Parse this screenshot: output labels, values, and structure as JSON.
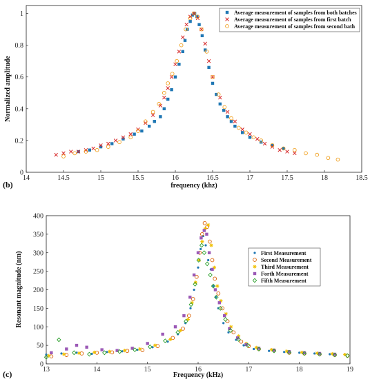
{
  "chart_data": [
    {
      "type": "scatter",
      "panel_label": "(b)",
      "title": "",
      "xlabel": "frequency (khz)",
      "ylabel": "Normalized amplitude",
      "xlim": [
        14,
        18.5
      ],
      "ylim": [
        0,
        1.05
      ],
      "xticks": [
        14,
        14.5,
        15,
        15.5,
        16,
        16.5,
        17,
        17.5,
        18,
        18.5
      ],
      "yticks": [
        0,
        0.2,
        0.4,
        0.6,
        0.8,
        1
      ],
      "xtick_labels": [
        "14",
        "14.5",
        "15",
        "15.5",
        "16",
        "16.5",
        "17",
        "17.5",
        "18",
        "18.5"
      ],
      "ytick_labels": [
        "0",
        "0.2",
        "0.4",
        "0.6",
        "0.8",
        "1"
      ],
      "grid": false,
      "legend_position": "top-right",
      "series": [
        {
          "name": "Average measurement of samples from both batches",
          "marker": "square",
          "color": "#1f77b4",
          "x": [
            14.7,
            14.85,
            15.0,
            15.15,
            15.3,
            15.45,
            15.55,
            15.65,
            15.72,
            15.8,
            15.85,
            15.9,
            15.95,
            16.0,
            16.05,
            16.1,
            16.13,
            16.16,
            16.2,
            16.23,
            16.26,
            16.29,
            16.32,
            16.36,
            16.4,
            16.45,
            16.5,
            16.55,
            16.6,
            16.65,
            16.7,
            16.75,
            16.8,
            16.9,
            17.0,
            17.15,
            17.3,
            17.45
          ],
          "y": [
            0.13,
            0.14,
            0.16,
            0.18,
            0.21,
            0.24,
            0.26,
            0.29,
            0.32,
            0.35,
            0.4,
            0.46,
            0.52,
            0.6,
            0.68,
            0.76,
            0.83,
            0.9,
            0.95,
            0.99,
            1.0,
            0.98,
            0.93,
            0.86,
            0.77,
            0.66,
            0.56,
            0.49,
            0.43,
            0.39,
            0.35,
            0.32,
            0.29,
            0.25,
            0.22,
            0.19,
            0.17,
            0.15
          ]
        },
        {
          "name": "Average measurement of samples from first batch",
          "marker": "x",
          "color": "#d62728",
          "x": [
            14.4,
            14.5,
            14.6,
            14.7,
            14.8,
            14.9,
            15.0,
            15.1,
            15.2,
            15.3,
            15.4,
            15.5,
            15.6,
            15.7,
            15.8,
            15.85,
            15.9,
            15.95,
            16.0,
            16.05,
            16.1,
            16.15,
            16.2,
            16.25,
            16.3,
            16.35,
            16.4,
            16.45,
            16.5,
            16.6,
            16.7,
            16.8,
            16.9,
            17.0,
            17.1,
            17.2,
            17.3,
            17.4,
            17.5,
            17.6
          ],
          "y": [
            0.11,
            0.12,
            0.13,
            0.13,
            0.14,
            0.15,
            0.17,
            0.18,
            0.2,
            0.22,
            0.24,
            0.27,
            0.31,
            0.36,
            0.42,
            0.47,
            0.53,
            0.6,
            0.68,
            0.76,
            0.85,
            0.93,
            0.98,
            1.0,
            0.97,
            0.9,
            0.81,
            0.7,
            0.6,
            0.47,
            0.38,
            0.32,
            0.27,
            0.24,
            0.21,
            0.18,
            0.16,
            0.14,
            0.13,
            0.12
          ]
        },
        {
          "name": "Average measurement of samples from second bath",
          "marker": "circle",
          "color": "#f0a020",
          "x": [
            14.5,
            14.65,
            14.8,
            14.95,
            15.1,
            15.25,
            15.4,
            15.5,
            15.6,
            15.7,
            15.78,
            15.85,
            15.9,
            15.96,
            16.02,
            16.08,
            16.14,
            16.2,
            16.25,
            16.3,
            16.35,
            16.42,
            16.5,
            16.58,
            16.66,
            16.75,
            16.85,
            16.95,
            17.05,
            17.15,
            17.3,
            17.45,
            17.6,
            17.75,
            17.9,
            18.05,
            18.18
          ],
          "y": [
            0.1,
            0.12,
            0.13,
            0.14,
            0.16,
            0.19,
            0.22,
            0.26,
            0.32,
            0.38,
            0.43,
            0.5,
            0.56,
            0.62,
            0.7,
            0.8,
            0.9,
            0.97,
            1.0,
            0.98,
            0.9,
            0.76,
            0.6,
            0.49,
            0.41,
            0.34,
            0.28,
            0.25,
            0.22,
            0.2,
            0.17,
            0.15,
            0.14,
            0.12,
            0.11,
            0.09,
            0.08
          ]
        }
      ]
    },
    {
      "type": "scatter",
      "panel_label": "(c)",
      "title": "",
      "xlabel": "Frequency (kHz)",
      "ylabel": "Resonant magnitude (nm)",
      "xlim": [
        13,
        19
      ],
      "ylim": [
        0,
        400
      ],
      "xticks": [
        13,
        14,
        15,
        16,
        17,
        18,
        19
      ],
      "yticks": [
        0,
        50,
        100,
        150,
        200,
        250,
        300,
        350,
        400
      ],
      "xtick_labels": [
        "13",
        "14",
        "15",
        "16",
        "17",
        "18",
        "19"
      ],
      "ytick_labels": [
        "0",
        "50",
        "100",
        "150",
        "200",
        "250",
        "300",
        "350",
        "400"
      ],
      "grid": false,
      "legend_position": "right",
      "series": [
        {
          "name": "First Measurement",
          "marker": "dot",
          "color": "#1f77b4",
          "x": [
            13.0,
            13.3,
            13.6,
            13.9,
            14.2,
            14.5,
            14.8,
            15.1,
            15.4,
            15.6,
            15.75,
            15.85,
            15.92,
            16.0,
            16.05,
            16.1,
            16.15,
            16.2,
            16.25,
            16.3,
            16.35,
            16.4,
            16.5,
            16.6,
            16.75,
            16.9,
            17.1,
            17.4,
            17.7,
            18.0,
            18.3,
            18.6,
            18.9
          ],
          "y": [
            25,
            28,
            30,
            27,
            32,
            34,
            38,
            45,
            60,
            80,
            110,
            150,
            200,
            260,
            310,
            345,
            320,
            280,
            255,
            210,
            180,
            150,
            110,
            85,
            65,
            50,
            40,
            35,
            32,
            30,
            28,
            26,
            25
          ]
        },
        {
          "name": "Second Measurement",
          "marker": "circle",
          "color": "#d95f02",
          "x": [
            13.1,
            13.4,
            13.7,
            14.0,
            14.3,
            14.6,
            14.9,
            15.2,
            15.5,
            15.7,
            15.82,
            15.9,
            15.97,
            16.03,
            16.08,
            16.13,
            16.18,
            16.23,
            16.28,
            16.33,
            16.4,
            16.48,
            16.58,
            16.7,
            16.85,
            17.0,
            17.2,
            17.5,
            17.8,
            18.1,
            18.4,
            18.7,
            18.95
          ],
          "y": [
            20,
            24,
            28,
            30,
            31,
            35,
            37,
            48,
            70,
            95,
            130,
            175,
            235,
            300,
            350,
            380,
            370,
            330,
            280,
            230,
            190,
            150,
            115,
            85,
            60,
            48,
            40,
            36,
            30,
            28,
            26,
            24,
            22
          ]
        },
        {
          "name": "Third Measurement",
          "marker": "star",
          "color": "#f0c000",
          "x": [
            13.05,
            13.35,
            13.65,
            13.95,
            14.25,
            14.55,
            14.85,
            15.15,
            15.45,
            15.65,
            15.8,
            15.88,
            15.95,
            16.02,
            16.08,
            16.14,
            16.2,
            16.26,
            16.32,
            16.38,
            16.45,
            16.55,
            16.65,
            16.8,
            16.95,
            17.15,
            17.45,
            17.75,
            18.05,
            18.35,
            18.65,
            18.9
          ],
          "y": [
            22,
            26,
            29,
            31,
            33,
            36,
            40,
            50,
            66,
            90,
            120,
            165,
            220,
            280,
            330,
            365,
            375,
            320,
            260,
            210,
            170,
            135,
            100,
            75,
            55,
            44,
            38,
            34,
            31,
            29,
            27,
            25
          ]
        },
        {
          "name": "Forth Measurement",
          "marker": "square",
          "color": "#9b59b6",
          "x": [
            13.1,
            13.4,
            13.6,
            13.8,
            14.1,
            14.4,
            14.7,
            15.0,
            15.3,
            15.55,
            15.72,
            15.84,
            15.92,
            16.0,
            16.06,
            16.12,
            16.17,
            16.22,
            16.28,
            16.34,
            16.42,
            16.52,
            16.62,
            16.78,
            16.95,
            17.2,
            17.5,
            17.8,
            18.1,
            18.4,
            18.7
          ],
          "y": [
            30,
            40,
            50,
            45,
            38,
            36,
            42,
            55,
            80,
            100,
            130,
            180,
            240,
            300,
            340,
            360,
            350,
            300,
            255,
            200,
            165,
            130,
            95,
            70,
            52,
            42,
            37,
            33,
            30,
            28,
            26
          ]
        },
        {
          "name": "Fifth Measurement",
          "marker": "diamond",
          "color": "#2ca02c",
          "x": [
            13.0,
            13.25,
            13.55,
            13.85,
            14.15,
            14.45,
            14.75,
            15.05,
            15.35,
            15.6,
            15.76,
            15.86,
            15.94,
            16.01,
            16.07,
            16.12,
            16.18,
            16.24,
            16.3,
            16.36,
            16.44,
            16.54,
            16.64,
            16.8,
            16.98,
            17.2,
            17.5,
            17.8,
            18.1,
            18.4,
            18.7,
            18.95
          ],
          "y": [
            18,
            65,
            30,
            26,
            30,
            33,
            38,
            46,
            62,
            85,
            115,
            160,
            215,
            280,
            320,
            300,
            270,
            240,
            210,
            180,
            150,
            120,
            90,
            66,
            50,
            40,
            35,
            31,
            28,
            26,
            24,
            22
          ]
        }
      ]
    }
  ]
}
